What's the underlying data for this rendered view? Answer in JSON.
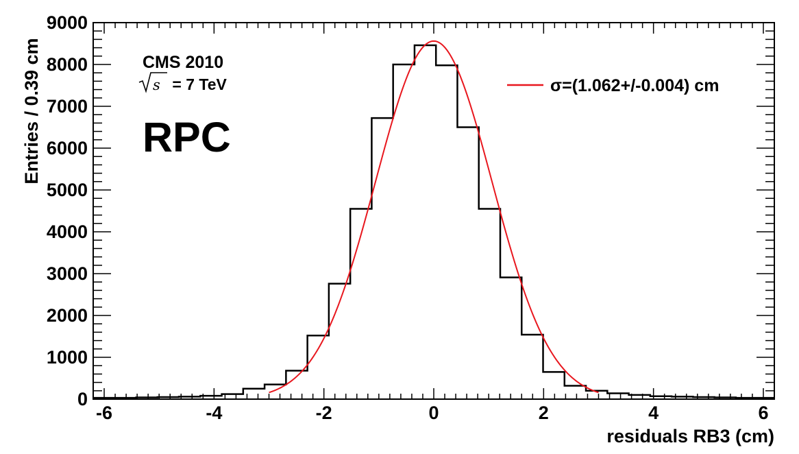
{
  "chart_data": {
    "type": "histogram",
    "xlabel": "residuals RB3 (cm)",
    "ylabel": "Entries / 0.39 cm",
    "xlim": [
      -6.2,
      6.2
    ],
    "ylim": [
      0,
      9000
    ],
    "x_ticks": [
      -6,
      -4,
      -2,
      0,
      2,
      4,
      6
    ],
    "x_tick_labels": [
      "-6",
      "-4",
      "-2",
      "0",
      "2",
      "4",
      "6"
    ],
    "y_ticks": [
      0,
      1000,
      2000,
      3000,
      4000,
      5000,
      6000,
      7000,
      8000,
      9000
    ],
    "y_tick_labels": [
      "0",
      "1000",
      "2000",
      "3000",
      "4000",
      "5000",
      "6000",
      "7000",
      "8000",
      "9000"
    ],
    "grid": false,
    "bin_edges": [
      -6.2,
      -5.81,
      -5.42,
      -5.03,
      -4.64,
      -4.25,
      -3.86,
      -3.47,
      -3.08,
      -2.69,
      -2.3,
      -1.91,
      -1.52,
      -1.13,
      -0.74,
      -0.35,
      0.04,
      0.43,
      0.82,
      1.21,
      1.6,
      1.99,
      2.38,
      2.77,
      3.16,
      3.55,
      3.94,
      4.33,
      4.72,
      5.11,
      5.5,
      5.89,
      6.2
    ],
    "series": [
      {
        "kind": "histogram",
        "color": "#000000",
        "values": [
          30,
          30,
          40,
          50,
          60,
          80,
          120,
          250,
          350,
          680,
          1520,
          2760,
          4550,
          6720,
          8000,
          8460,
          7980,
          6500,
          4550,
          2910,
          1540,
          650,
          320,
          200,
          140,
          100,
          70,
          60,
          50,
          40,
          30,
          30
        ]
      },
      {
        "kind": "fit",
        "name": "σ=(1.062+/-0.004) cm",
        "color": "#e8171e",
        "function": "gaussian",
        "amplitude": 8560,
        "mean": 0.0,
        "sigma": 1.062,
        "range": [
          -3.0,
          3.0
        ]
      }
    ],
    "annotations": {
      "experiment": "CMS 2010",
      "energy_value": " = 7 TeV",
      "detector": "RPC"
    },
    "legend": {
      "placement": "top-right",
      "entries": [
        "σ=(1.062+/-0.004) cm"
      ]
    }
  }
}
